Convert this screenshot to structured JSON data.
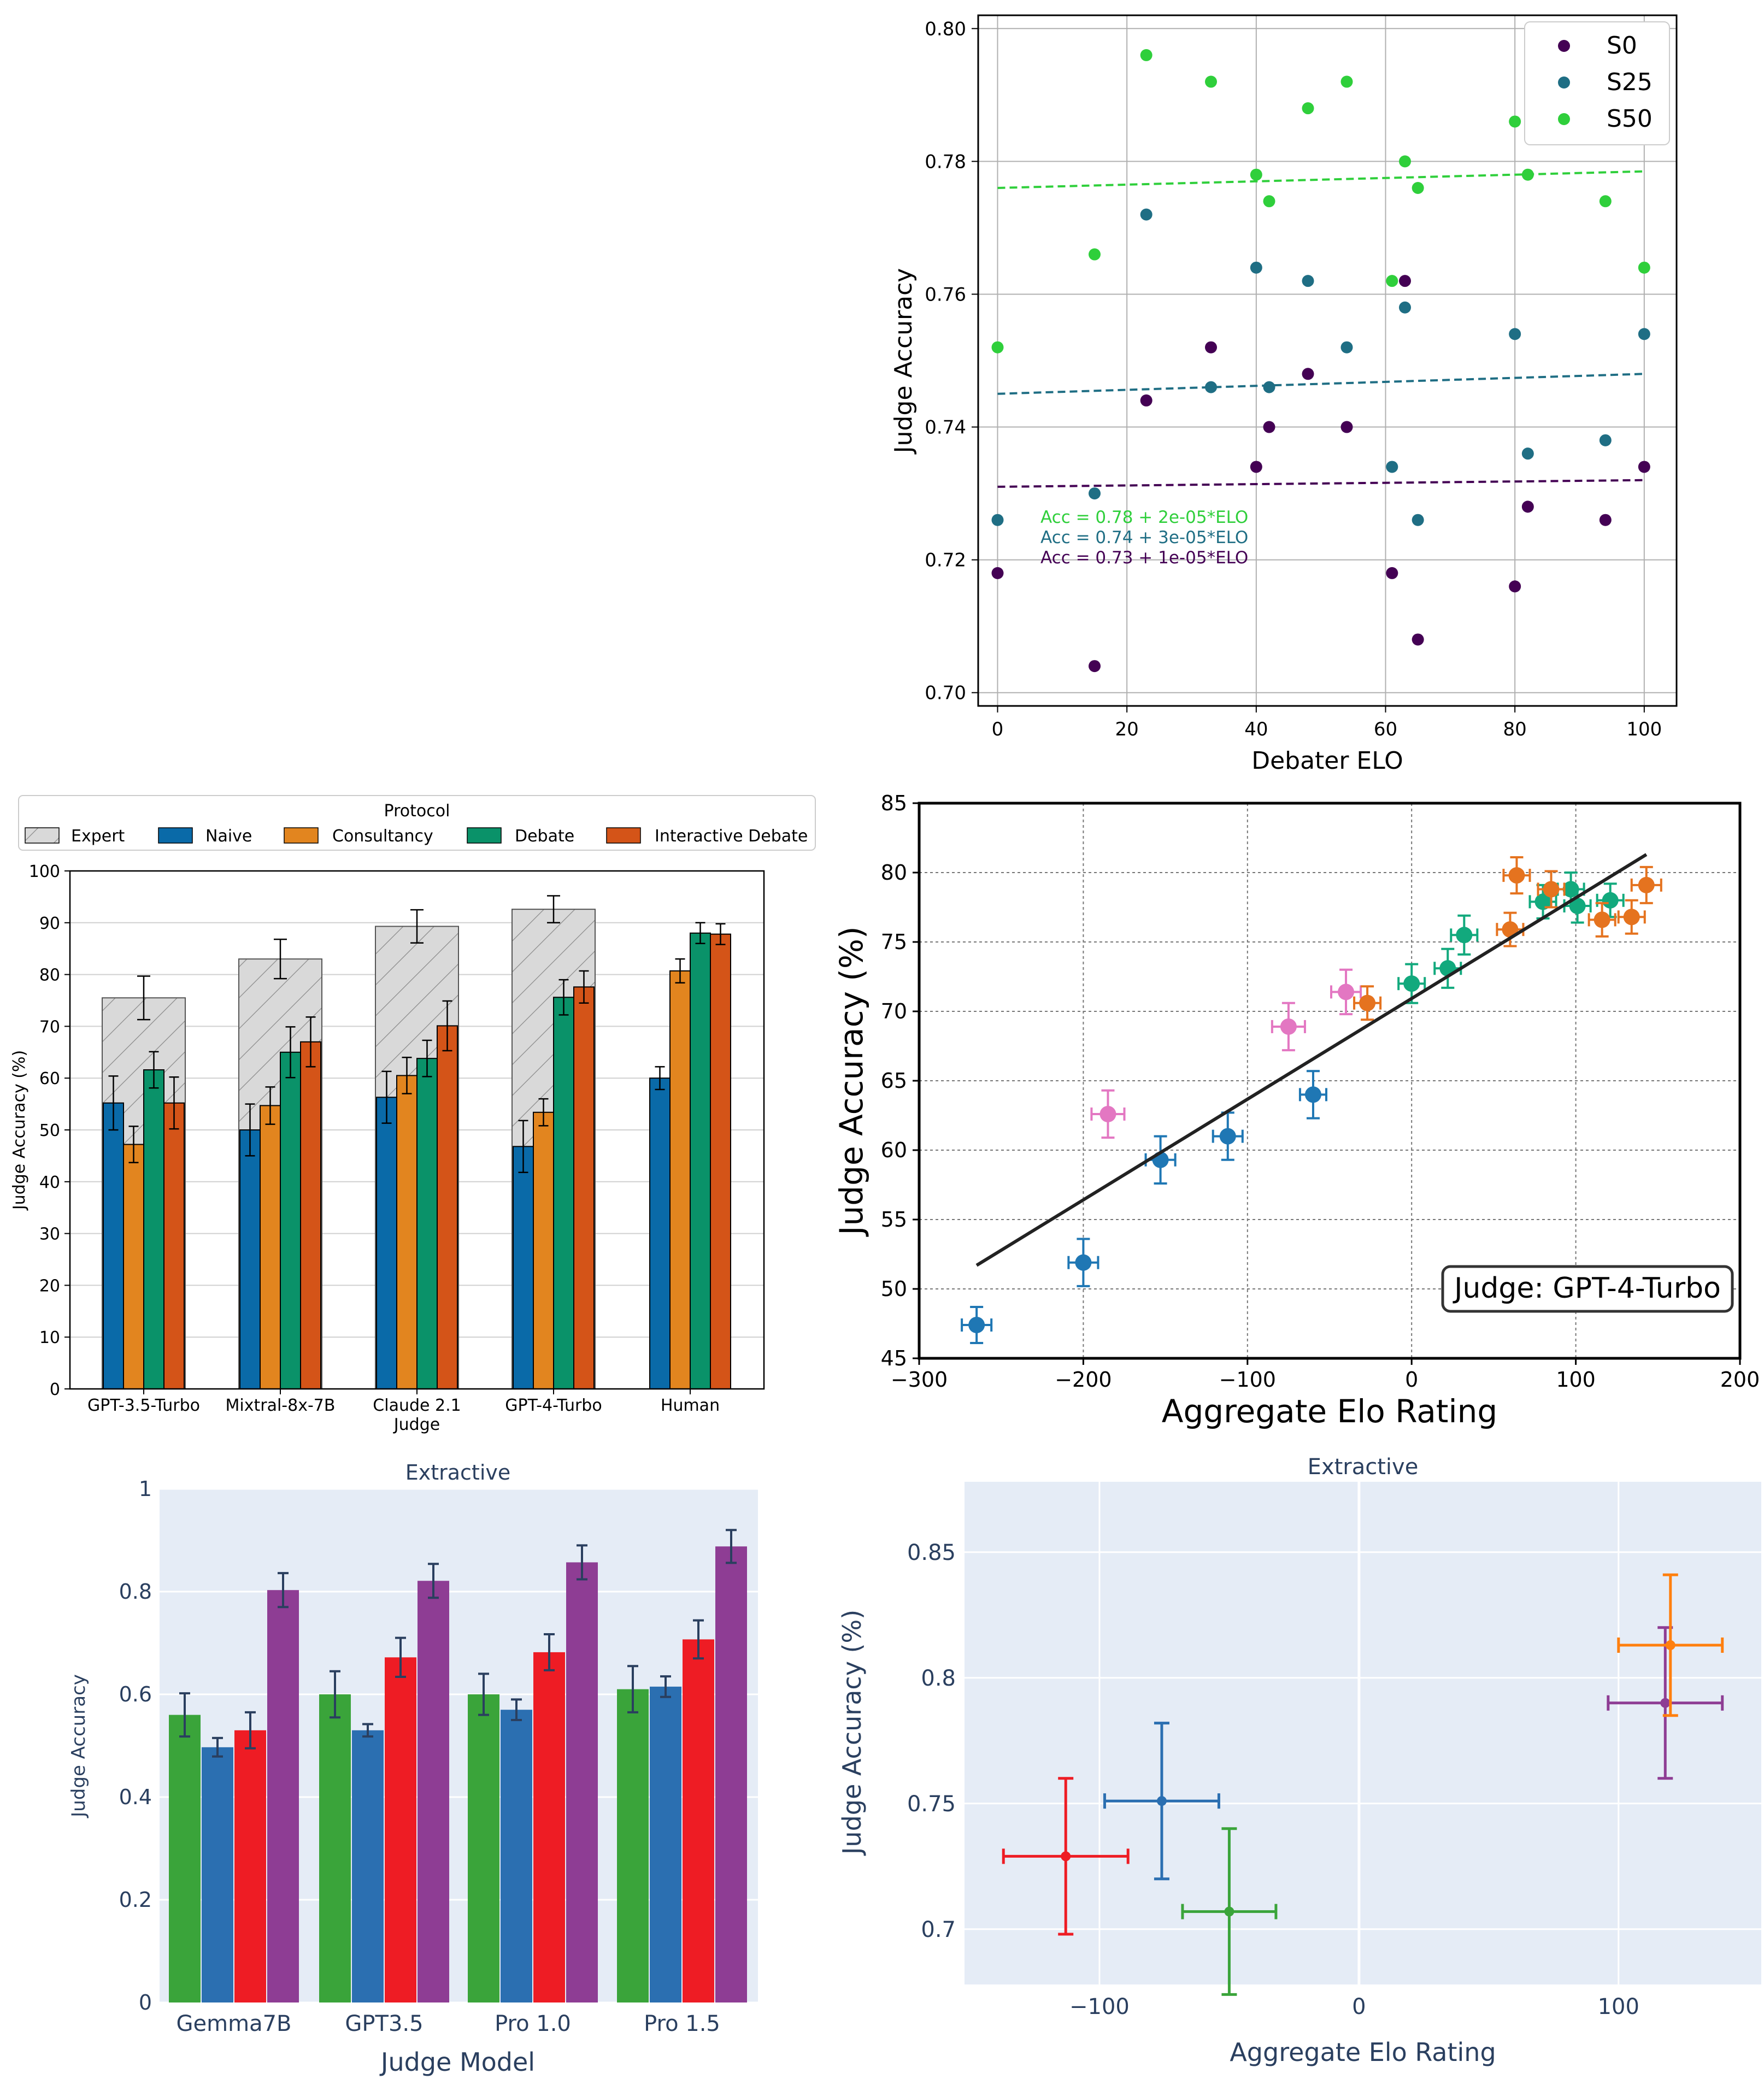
{
  "colors": {
    "S0": "#440154",
    "S25": "#1f6e84",
    "S50": "#2fcf3b",
    "Expert": "#d9d9d9",
    "Naive": "#0a6aa8",
    "Consultancy": "#e2851f",
    "Debate": "#0a9269",
    "InteractiveDebate": "#d45418",
    "elo_blue": "#1f77b4",
    "elo_pink": "#e377c2",
    "elo_green": "#12a97d",
    "elo_orange": "#e5731f",
    "plotly_bg": "#e5ecf6",
    "plotly_text": "#2a3f5f",
    "pl_green": "#3aa43a",
    "pl_blue": "#2b6fb1",
    "pl_red": "#ee1c24",
    "pl_purple": "#8e3d94"
  },
  "chart_data": [
    {
      "id": "scatter_debater_elo",
      "type": "scatter",
      "xlabel": "Debater ELO",
      "ylabel": "Judge Accuracy",
      "xlim": [
        -3,
        105
      ],
      "ylim": [
        0.698,
        0.802
      ],
      "xticks": [
        0,
        20,
        40,
        60,
        80,
        100
      ],
      "yticks": [
        0.7,
        0.72,
        0.74,
        0.76,
        0.78,
        0.8
      ],
      "ytick_labels": [
        "0.70",
        "0.72",
        "0.74",
        "0.76",
        "0.78",
        "0.80"
      ],
      "grid": true,
      "legend_position": "top-right",
      "series": [
        {
          "name": "S0",
          "points": [
            [
              0,
              0.718
            ],
            [
              15,
              0.704
            ],
            [
              23,
              0.744
            ],
            [
              33,
              0.752
            ],
            [
              40,
              0.734
            ],
            [
              42,
              0.74
            ],
            [
              48,
              0.748
            ],
            [
              54,
              0.74
            ],
            [
              61,
              0.718
            ],
            [
              63,
              0.762
            ],
            [
              65,
              0.708
            ],
            [
              80,
              0.716
            ],
            [
              82,
              0.728
            ],
            [
              94,
              0.726
            ],
            [
              100,
              0.734
            ]
          ],
          "fit": [
            [
              0,
              0.731
            ],
            [
              100,
              0.732
            ]
          ]
        },
        {
          "name": "S25",
          "points": [
            [
              0,
              0.726
            ],
            [
              15,
              0.73
            ],
            [
              23,
              0.772
            ],
            [
              33,
              0.746
            ],
            [
              40,
              0.764
            ],
            [
              42,
              0.746
            ],
            [
              48,
              0.762
            ],
            [
              54,
              0.752
            ],
            [
              61,
              0.734
            ],
            [
              63,
              0.758
            ],
            [
              65,
              0.726
            ],
            [
              80,
              0.754
            ],
            [
              82,
              0.736
            ],
            [
              94,
              0.738
            ],
            [
              100,
              0.754
            ]
          ],
          "fit": [
            [
              0,
              0.745
            ],
            [
              100,
              0.748
            ]
          ]
        },
        {
          "name": "S50",
          "points": [
            [
              0,
              0.752
            ],
            [
              15,
              0.766
            ],
            [
              23,
              0.796
            ],
            [
              33,
              0.792
            ],
            [
              40,
              0.778
            ],
            [
              42,
              0.774
            ],
            [
              48,
              0.788
            ],
            [
              54,
              0.792
            ],
            [
              61,
              0.762
            ],
            [
              63,
              0.78
            ],
            [
              65,
              0.776
            ],
            [
              80,
              0.786
            ],
            [
              82,
              0.778
            ],
            [
              94,
              0.774
            ],
            [
              100,
              0.764
            ]
          ],
          "fit": [
            [
              0,
              0.776
            ],
            [
              100,
              0.7785
            ]
          ]
        }
      ],
      "annotations": [
        "Acc = 0.78 + 2e-05*ELO",
        "Acc = 0.74 + 3e-05*ELO",
        "Acc = 0.73 + 1e-05*ELO"
      ]
    },
    {
      "id": "bar_protocol",
      "type": "bar",
      "legend_title": "Protocol",
      "legend_position": "top",
      "xlabel": "Judge",
      "ylabel": "Judge Accuracy (%)",
      "ylim": [
        0,
        100
      ],
      "yticks": [
        0,
        10,
        20,
        30,
        40,
        50,
        60,
        70,
        80,
        90,
        100
      ],
      "grid": true,
      "categories": [
        "GPT-3.5-Turbo",
        "Mixtral-8x-7B",
        "Claude 2.1",
        "GPT-4-Turbo",
        "Human"
      ],
      "expert": {
        "name": "Expert",
        "values": [
          75.5,
          83,
          89.3,
          92.6,
          null
        ],
        "errors": [
          4.2,
          3.8,
          3.2,
          2.6,
          null
        ]
      },
      "series": [
        {
          "name": "Naive",
          "values": [
            55.2,
            50,
            56.3,
            46.8,
            60
          ],
          "errors": [
            5.2,
            5.0,
            5.0,
            5.0,
            2.2
          ]
        },
        {
          "name": "Consultancy",
          "values": [
            47.2,
            54.7,
            60.5,
            53.4,
            80.7
          ],
          "errors": [
            3.5,
            3.6,
            3.5,
            2.6,
            2.3
          ]
        },
        {
          "name": "Debate",
          "values": [
            61.6,
            65,
            63.8,
            75.6,
            88
          ],
          "errors": [
            3.5,
            4.9,
            3.5,
            3.4,
            2.0
          ]
        },
        {
          "name": "Interactive Debate",
          "values": [
            55.2,
            67,
            70.1,
            77.6,
            87.8
          ],
          "errors": [
            5.0,
            4.8,
            4.8,
            3.1,
            2.0
          ]
        }
      ]
    },
    {
      "id": "elo_gpt4",
      "type": "scatter",
      "xlabel": "Aggregate Elo Rating",
      "ylabel": "Judge Accuracy (%)",
      "xlim": [
        -300,
        200
      ],
      "ylim": [
        45,
        85
      ],
      "xticks": [
        -300,
        -200,
        -100,
        0,
        100,
        200
      ],
      "xtick_labels": [
        "−300",
        "−200",
        "−100",
        "0",
        "100",
        "200"
      ],
      "yticks": [
        45,
        50,
        55,
        60,
        65,
        70,
        75,
        80,
        85
      ],
      "grid": true,
      "annotation": "Judge: GPT-4-Turbo",
      "fit": [
        [
          -265,
          51.7
        ],
        [
          143,
          81.3
        ]
      ],
      "points": [
        {
          "x": -265,
          "y": 47.4,
          "xerr": 9,
          "yerr": 1.3,
          "c": "elo_blue"
        },
        {
          "x": -200,
          "y": 51.9,
          "xerr": 9,
          "yerr": 1.7,
          "c": "elo_blue"
        },
        {
          "x": -153,
          "y": 59.3,
          "xerr": 9,
          "yerr": 1.7,
          "c": "elo_blue"
        },
        {
          "x": -112,
          "y": 61.0,
          "xerr": 9,
          "yerr": 1.7,
          "c": "elo_blue"
        },
        {
          "x": -60,
          "y": 64.0,
          "xerr": 8,
          "yerr": 1.7,
          "c": "elo_blue"
        },
        {
          "x": -185,
          "y": 62.6,
          "xerr": 10,
          "yerr": 1.7,
          "c": "elo_pink"
        },
        {
          "x": -75,
          "y": 68.9,
          "xerr": 10,
          "yerr": 1.7,
          "c": "elo_pink"
        },
        {
          "x": -40,
          "y": 71.4,
          "xerr": 9,
          "yerr": 1.6,
          "c": "elo_pink"
        },
        {
          "x": 0,
          "y": 72.0,
          "xerr": 8,
          "yerr": 1.4,
          "c": "elo_green"
        },
        {
          "x": 22,
          "y": 73.1,
          "xerr": 8,
          "yerr": 1.4,
          "c": "elo_green"
        },
        {
          "x": 32,
          "y": 75.5,
          "xerr": 8,
          "yerr": 1.4,
          "c": "elo_green"
        },
        {
          "x": 80,
          "y": 77.9,
          "xerr": 8,
          "yerr": 1.2,
          "c": "elo_green"
        },
        {
          "x": 97,
          "y": 78.8,
          "xerr": 8,
          "yerr": 1.2,
          "c": "elo_green"
        },
        {
          "x": 101,
          "y": 77.6,
          "xerr": 8,
          "yerr": 1.2,
          "c": "elo_green"
        },
        {
          "x": 121,
          "y": 78.0,
          "xerr": 8,
          "yerr": 1.2,
          "c": "elo_green"
        },
        {
          "x": -27,
          "y": 70.6,
          "xerr": 8,
          "yerr": 1.2,
          "c": "elo_orange"
        },
        {
          "x": 60,
          "y": 75.9,
          "xerr": 8,
          "yerr": 1.2,
          "c": "elo_orange"
        },
        {
          "x": 64,
          "y": 79.8,
          "xerr": 8,
          "yerr": 1.3,
          "c": "elo_orange"
        },
        {
          "x": 85,
          "y": 78.8,
          "xerr": 8,
          "yerr": 1.3,
          "c": "elo_orange"
        },
        {
          "x": 116,
          "y": 76.6,
          "xerr": 8,
          "yerr": 1.2,
          "c": "elo_orange"
        },
        {
          "x": 134,
          "y": 76.8,
          "xerr": 8,
          "yerr": 1.2,
          "c": "elo_orange"
        },
        {
          "x": 143,
          "y": 79.1,
          "xerr": 9,
          "yerr": 1.3,
          "c": "elo_orange"
        }
      ]
    },
    {
      "id": "bar_extractive",
      "type": "bar",
      "title": "Extractive",
      "xlabel": "Judge Model",
      "ylabel": "Judge Accuracy",
      "ylim": [
        0,
        1
      ],
      "yticks": [
        0,
        0.2,
        0.4,
        0.6,
        0.8,
        1
      ],
      "ytick_labels": [
        "0",
        "0.2",
        "0.4",
        "0.6",
        "0.8",
        "1"
      ],
      "categories": [
        "Gemma7B",
        "GPT3.5",
        "Pro 1.0",
        "Pro 1.5"
      ],
      "series": [
        {
          "color": "pl_green",
          "values": [
            0.56,
            0.6,
            0.6,
            0.61
          ],
          "errors": [
            0.042,
            0.045,
            0.04,
            0.045
          ]
        },
        {
          "color": "pl_blue",
          "values": [
            0.497,
            0.53,
            0.57,
            0.615
          ],
          "errors": [
            0.018,
            0.012,
            0.02,
            0.02
          ]
        },
        {
          "color": "pl_red",
          "values": [
            0.53,
            0.672,
            0.682,
            0.707
          ],
          "errors": [
            0.035,
            0.038,
            0.035,
            0.037
          ]
        },
        {
          "color": "pl_purple",
          "values": [
            0.803,
            0.821,
            0.857,
            0.888
          ],
          "errors": [
            0.033,
            0.033,
            0.033,
            0.032
          ]
        }
      ]
    },
    {
      "id": "elo_extractive",
      "type": "scatter",
      "title": "Extractive",
      "xlabel": "Aggregate Elo Rating",
      "ylabel": "Judge Accuracy (%)",
      "xlim": [
        -152,
        155
      ],
      "ylim": [
        0.678,
        0.878
      ],
      "xticks": [
        -100,
        0,
        100
      ],
      "xtick_labels": [
        "−100",
        "0",
        "100"
      ],
      "yticks": [
        0.7,
        0.75,
        0.8,
        0.85
      ],
      "ytick_labels": [
        "0.7",
        "0.75",
        "0.8",
        "0.85"
      ],
      "points": [
        {
          "x": -113,
          "y": 0.729,
          "xerr": 24,
          "yerr": 0.031,
          "c": "pl_red"
        },
        {
          "x": -76,
          "y": 0.751,
          "xerr": 22,
          "yerr": 0.031,
          "c": "pl_blue"
        },
        {
          "x": -50,
          "y": 0.707,
          "xerr": 18,
          "yerr": 0.033,
          "c": "pl_green"
        },
        {
          "x": 118,
          "y": 0.79,
          "xerr": 22,
          "yerr": 0.03,
          "c": "pl_purple"
        },
        {
          "x": 120,
          "y": 0.813,
          "xerr": 20,
          "yerr": 0.028,
          "c": "#ff7f0e"
        }
      ]
    }
  ]
}
